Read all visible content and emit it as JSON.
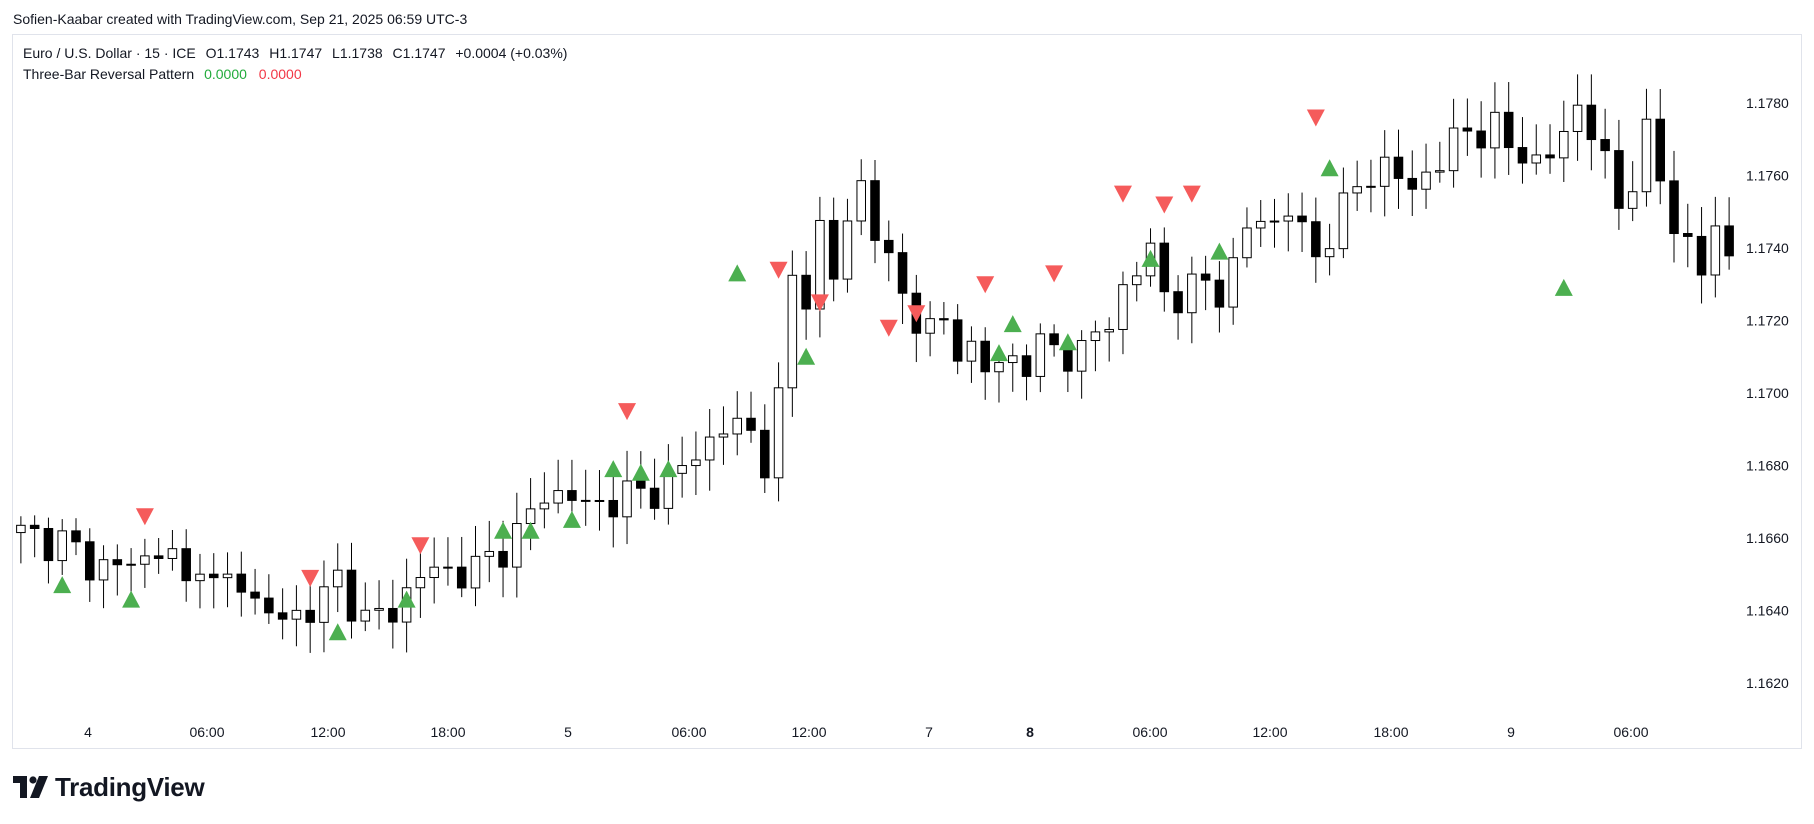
{
  "credit": "Sofien-Kaabar created with TradingView.com, Sep 21, 2025 06:59 UTC-3",
  "legend": {
    "symbol": "Euro / U.S. Dollar · 15 · ICE",
    "open": "O1.1743",
    "high": "H1.1747",
    "low": "L1.1738",
    "close": "C1.1747",
    "change": "+0.0004 (+0.03%)"
  },
  "indicator": {
    "name": "Three-Bar Reversal Pattern",
    "value_up": "0.0000",
    "value_down": "0.0000"
  },
  "brand": {
    "name": "TradingView",
    "icon": "tradingview-logo-icon"
  },
  "colors": {
    "up_marker": "#4caf50",
    "down_marker": "#f55b5b",
    "candle": "#000000"
  },
  "chart_data": {
    "type": "candlestick",
    "instrument": "EURUSD",
    "timeframe": "15",
    "ylim": [
      1.1608,
      1.1794
    ],
    "y_ticks": [
      "1.1780",
      "1.1760",
      "1.1740",
      "1.1720",
      "1.1700",
      "1.1680",
      "1.1660",
      "1.1640",
      "1.1620"
    ],
    "x_ticks": [
      {
        "label": "4",
        "bold": false
      },
      {
        "label": "06:00",
        "bold": false
      },
      {
        "label": "12:00",
        "bold": false
      },
      {
        "label": "18:00",
        "bold": false
      },
      {
        "label": "5",
        "bold": false
      },
      {
        "label": "06:00",
        "bold": false
      },
      {
        "label": "12:00",
        "bold": false
      },
      {
        "label": "7",
        "bold": false
      },
      {
        "label": "8",
        "bold": true
      },
      {
        "label": "06:00",
        "bold": false
      },
      {
        "label": "12:00",
        "bold": false
      },
      {
        "label": "18:00",
        "bold": false
      },
      {
        "label": "9",
        "bold": false
      },
      {
        "label": "06:00",
        "bold": false
      }
    ],
    "close_path": [
      [
        0,
        1.1661
      ],
      [
        3,
        1.1659
      ],
      [
        5,
        1.1653
      ],
      [
        7,
        1.1652
      ],
      [
        9,
        1.1654
      ],
      [
        10,
        1.1658
      ],
      [
        11,
        1.1654
      ],
      [
        12,
        1.1646
      ],
      [
        13,
        1.1656
      ],
      [
        14,
        1.1646
      ],
      [
        16,
        1.1649
      ],
      [
        17,
        1.1642
      ],
      [
        19,
        1.1637
      ],
      [
        20,
        1.1639
      ],
      [
        22,
        1.1643
      ],
      [
        23,
        1.1649
      ],
      [
        25,
        1.1637
      ],
      [
        27,
        1.164
      ],
      [
        29,
        1.165
      ],
      [
        31,
        1.1651
      ],
      [
        33,
        1.1651
      ],
      [
        36,
        1.1661
      ],
      [
        38,
        1.1672
      ],
      [
        40,
        1.1672
      ],
      [
        41,
        1.1668
      ],
      [
        43,
        1.1671
      ],
      [
        45,
        1.1672
      ],
      [
        47,
        1.1675
      ],
      [
        49,
        1.1683
      ],
      [
        51,
        1.1691
      ],
      [
        53,
        1.1689
      ],
      [
        54,
        1.1682
      ],
      [
        55,
        1.1697
      ],
      [
        56,
        1.1731
      ],
      [
        57,
        1.1728
      ],
      [
        58,
        1.1745
      ],
      [
        59,
        1.1731
      ],
      [
        60,
        1.1748
      ],
      [
        61,
        1.1758
      ],
      [
        62,
        1.1745
      ],
      [
        63,
        1.1735
      ],
      [
        64,
        1.1727
      ],
      [
        65,
        1.1722
      ],
      [
        66,
        1.1716
      ],
      [
        67,
        1.1719
      ],
      [
        68,
        1.1713
      ],
      [
        69,
        1.1712
      ],
      [
        70,
        1.1706
      ],
      [
        72,
        1.171
      ],
      [
        73,
        1.1708
      ],
      [
        74,
        1.1712
      ],
      [
        75,
        1.1713
      ],
      [
        77,
        1.171
      ],
      [
        78,
        1.1716
      ],
      [
        79,
        1.1721
      ],
      [
        80,
        1.1728
      ],
      [
        81,
        1.1733
      ],
      [
        82,
        1.174
      ],
      [
        83,
        1.1728
      ],
      [
        84,
        1.1726
      ],
      [
        85,
        1.1728
      ],
      [
        86,
        1.1731
      ],
      [
        87,
        1.1729
      ],
      [
        88,
        1.1733
      ],
      [
        89,
        1.1745
      ],
      [
        90,
        1.175
      ],
      [
        91,
        1.1746
      ],
      [
        92,
        1.175
      ],
      [
        93,
        1.1745
      ],
      [
        94,
        1.1738
      ],
      [
        95,
        1.1744
      ],
      [
        96,
        1.175
      ],
      [
        97,
        1.1757
      ],
      [
        98,
        1.1762
      ],
      [
        99,
        1.1761
      ],
      [
        100,
        1.1759
      ],
      [
        101,
        1.1758
      ],
      [
        102,
        1.176
      ],
      [
        103,
        1.1763
      ],
      [
        104,
        1.177
      ],
      [
        105,
        1.1773
      ],
      [
        106,
        1.1772
      ],
      [
        107,
        1.1772
      ],
      [
        108,
        1.1768
      ],
      [
        109,
        1.1768
      ],
      [
        110,
        1.1762
      ],
      [
        111,
        1.1765
      ],
      [
        112,
        1.1773
      ],
      [
        113,
        1.1779
      ],
      [
        114,
        1.1772
      ],
      [
        115,
        1.1763
      ],
      [
        116,
        1.1752
      ],
      [
        117,
        1.176
      ],
      [
        118,
        1.177
      ],
      [
        119,
        1.1759
      ],
      [
        120,
        1.1748
      ],
      [
        121,
        1.174
      ],
      [
        122,
        1.1733
      ],
      [
        123,
        1.1746
      ],
      [
        124,
        1.1738
      ]
    ],
    "up_markers": [
      [
        3,
        1.1647
      ],
      [
        8,
        1.1643
      ],
      [
        23,
        1.1634
      ],
      [
        28,
        1.1643
      ],
      [
        35,
        1.1662
      ],
      [
        37,
        1.1662
      ],
      [
        40,
        1.1665
      ],
      [
        43,
        1.1679
      ],
      [
        45,
        1.1678
      ],
      [
        47,
        1.1679
      ],
      [
        52,
        1.1733
      ],
      [
        57,
        1.171
      ],
      [
        71,
        1.1711
      ],
      [
        72,
        1.1719
      ],
      [
        76,
        1.1714
      ],
      [
        82,
        1.1737
      ],
      [
        87,
        1.1739
      ],
      [
        95,
        1.1762
      ],
      [
        112,
        1.1729
      ]
    ],
    "down_markers": [
      [
        9,
        1.1666
      ],
      [
        21,
        1.1649
      ],
      [
        29,
        1.1658
      ],
      [
        44,
        1.1695
      ],
      [
        55,
        1.1734
      ],
      [
        58,
        1.1725
      ],
      [
        63,
        1.1718
      ],
      [
        65,
        1.1722
      ],
      [
        70,
        1.173
      ],
      [
        75,
        1.1733
      ],
      [
        80,
        1.1755
      ],
      [
        83,
        1.1752
      ],
      [
        85,
        1.1755
      ],
      [
        94,
        1.1776
      ]
    ]
  }
}
